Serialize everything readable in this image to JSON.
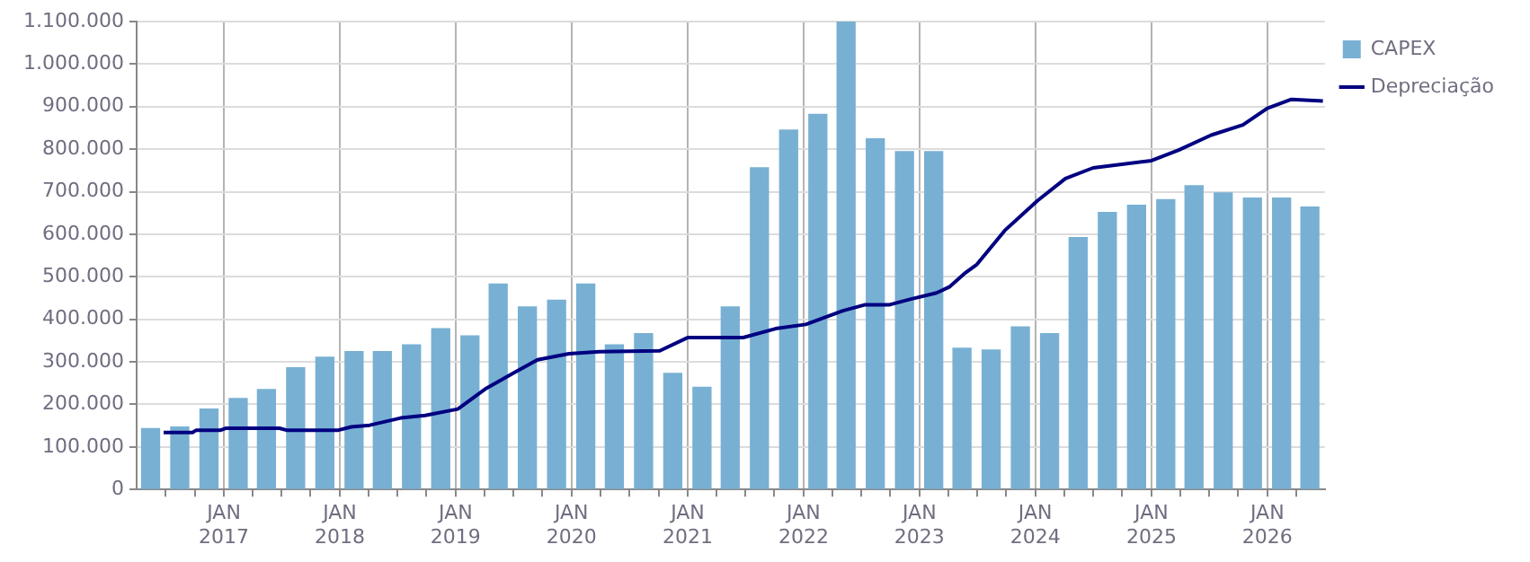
{
  "chart_data": {
    "type": "bar",
    "x": [
      "2016-05-15",
      "2016-08-15",
      "2016-11-15",
      "2017-02-15",
      "2017-05-15",
      "2017-08-15",
      "2017-11-15",
      "2018-02-15",
      "2018-05-15",
      "2018-08-15",
      "2018-11-15",
      "2019-02-15",
      "2019-05-15",
      "2019-08-15",
      "2019-11-15",
      "2020-02-15",
      "2020-05-15",
      "2020-08-15",
      "2020-11-15",
      "2021-02-15",
      "2021-05-15",
      "2021-08-15",
      "2021-11-15",
      "2022-02-15",
      "2022-05-15",
      "2022-08-15",
      "2022-11-15",
      "2023-02-15",
      "2023-05-15",
      "2023-08-15",
      "2023-11-15",
      "2024-02-15",
      "2024-05-15",
      "2024-08-15",
      "2024-11-15",
      "2025-02-15",
      "2025-05-15",
      "2025-08-15",
      "2025-11-15",
      "2026-02-15",
      "2026-05-15"
    ],
    "series": [
      {
        "name": "CAPEX",
        "color": "#78b0d3",
        "values": [
          143000,
          147000,
          189000,
          214000,
          235000,
          286000,
          311000,
          324000,
          324000,
          340000,
          378000,
          361000,
          483000,
          429000,
          445000,
          483000,
          340000,
          366000,
          273000,
          240000,
          429000,
          756000,
          845000,
          882000,
          1100000,
          824000,
          794000,
          794000,
          332000,
          328000,
          382000,
          366000,
          592000,
          651000,
          668000,
          681000,
          714000,
          697000,
          685000,
          685000,
          664000
        ]
      },
      {
        "name": "Depreciação",
        "type": "line",
        "color": "#000080",
        "x": [
          "2016-06-25",
          "2016-09-24",
          "2016-10-05",
          "2016-12-20",
          "2017-01-08",
          "2017-06-25",
          "2017-07-20",
          "2017-12-25",
          "2018-02-06",
          "2018-04-05",
          "2018-07-12",
          "2018-09-27",
          "2019-01-08",
          "2019-04-08",
          "2019-07-01",
          "2019-09-16",
          "2019-12-24",
          "2020-03-28",
          "2020-10-05",
          "2021-01-01",
          "2021-06-25",
          "2021-10-05",
          "2022-01-08",
          "2022-05-05",
          "2022-07-12",
          "2022-09-27",
          "2022-12-08",
          "2023-02-24",
          "2023-04-05",
          "2023-05-22",
          "2023-07-01",
          "2023-09-27",
          "2024-01-08",
          "2024-04-05",
          "2024-07-01",
          "2025-01-01",
          "2025-03-28",
          "2025-07-08",
          "2025-10-16",
          "2026-01-01",
          "2026-03-18",
          "2026-06-25"
        ],
        "values": [
          134000,
          134000,
          139000,
          139000,
          144000,
          144000,
          139000,
          139000,
          147000,
          151000,
          168000,
          174000,
          189000,
          238000,
          273000,
          305000,
          319000,
          324000,
          326000,
          357000,
          357000,
          378000,
          388000,
          420000,
          434000,
          434000,
          448000,
          462000,
          476000,
          507000,
          529000,
          609000,
          679000,
          731000,
          756000,
          773000,
          798000,
          833000,
          857000,
          896000,
          917000,
          913000
        ]
      }
    ],
    "xlim": [
      "2016-04-01",
      "2026-07-01"
    ],
    "xticks": [
      {
        "value": "2016-07-01",
        "label": null
      },
      {
        "value": "2016-10-01",
        "label": null
      },
      {
        "value": "2017-01-01",
        "label": "JAN 2017"
      },
      {
        "value": "2017-04-01",
        "label": null
      },
      {
        "value": "2017-07-01",
        "label": null
      },
      {
        "value": "2017-10-01",
        "label": null
      },
      {
        "value": "2018-01-01",
        "label": "JAN 2018"
      },
      {
        "value": "2018-04-01",
        "label": null
      },
      {
        "value": "2018-07-01",
        "label": null
      },
      {
        "value": "2018-10-01",
        "label": null
      },
      {
        "value": "2019-01-01",
        "label": "JAN 2019"
      },
      {
        "value": "2019-04-01",
        "label": null
      },
      {
        "value": "2019-07-01",
        "label": null
      },
      {
        "value": "2019-10-01",
        "label": null
      },
      {
        "value": "2020-01-01",
        "label": "JAN 2020"
      },
      {
        "value": "2020-04-01",
        "label": null
      },
      {
        "value": "2020-07-01",
        "label": null
      },
      {
        "value": "2020-10-01",
        "label": null
      },
      {
        "value": "2021-01-01",
        "label": "JAN 2021"
      },
      {
        "value": "2021-04-01",
        "label": null
      },
      {
        "value": "2021-07-01",
        "label": null
      },
      {
        "value": "2021-10-01",
        "label": null
      },
      {
        "value": "2022-01-01",
        "label": "JAN 2022"
      },
      {
        "value": "2022-04-01",
        "label": null
      },
      {
        "value": "2022-07-01",
        "label": null
      },
      {
        "value": "2022-10-01",
        "label": null
      },
      {
        "value": "2023-01-01",
        "label": "JAN 2023"
      },
      {
        "value": "2023-04-01",
        "label": null
      },
      {
        "value": "2023-07-01",
        "label": null
      },
      {
        "value": "2023-10-01",
        "label": null
      },
      {
        "value": "2024-01-01",
        "label": "JAN 2024"
      },
      {
        "value": "2024-04-01",
        "label": null
      },
      {
        "value": "2024-07-01",
        "label": null
      },
      {
        "value": "2024-10-01",
        "label": null
      },
      {
        "value": "2025-01-01",
        "label": "JAN 2025"
      },
      {
        "value": "2025-04-01",
        "label": null
      },
      {
        "value": "2025-07-01",
        "label": null
      },
      {
        "value": "2025-10-01",
        "label": null
      },
      {
        "value": "2026-01-01",
        "label": "JAN 2026"
      },
      {
        "value": "2026-04-01",
        "label": null
      }
    ],
    "ylim": [
      0,
      1100000
    ],
    "yticks": [
      0,
      {
        "value": 100000,
        "label": "100.000"
      },
      {
        "value": 200000,
        "label": "200.000"
      },
      {
        "value": 300000,
        "label": "300.000"
      },
      {
        "value": 400000,
        "label": "400.000"
      },
      {
        "value": 500000,
        "label": "500.000"
      },
      {
        "value": 600000,
        "label": "600.000"
      },
      {
        "value": 700000,
        "label": "700.000"
      },
      {
        "value": 800000,
        "label": "800.000"
      },
      {
        "value": 900000,
        "label": "900.000"
      },
      {
        "value": 1000000,
        "label": "1.000.000"
      },
      {
        "value": 1100000,
        "label": "1.100.000"
      }
    ],
    "grid": true,
    "legend": "top right",
    "marker": "none"
  }
}
